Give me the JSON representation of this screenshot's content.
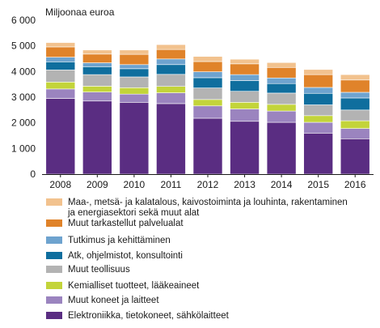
{
  "chart_data": {
    "type": "bar",
    "stacked": true,
    "unit_label": "Miljoonaa euroa",
    "categories": [
      "2008",
      "2009",
      "2010",
      "2011",
      "2012",
      "2013",
      "2014",
      "2015",
      "2016"
    ],
    "yticks": [
      "0",
      "1 000",
      "2 000",
      "3 000",
      "4 000",
      "5 000",
      "6 000"
    ],
    "ylim": [
      0,
      6000
    ],
    "grid": false,
    "legend_position": "bottom",
    "series": [
      {
        "name": "Elektroniikka, tietokoneet, sähkölaitteet",
        "color": "#5a2d82",
        "values": [
          2950,
          2850,
          2800,
          2750,
          2180,
          2060,
          2020,
          1600,
          1380
        ]
      },
      {
        "name": "Muut koneet ja laitteet",
        "color": "#9b84bf",
        "values": [
          370,
          350,
          320,
          420,
          480,
          480,
          440,
          420,
          400
        ]
      },
      {
        "name": "Kemialliset tuotteet, lääkeaineet",
        "color": "#c3d43a",
        "values": [
          270,
          230,
          250,
          250,
          250,
          260,
          260,
          260,
          300
        ]
      },
      {
        "name": "Muut teollisuus",
        "color": "#b3b3b3",
        "values": [
          470,
          450,
          420,
          470,
          450,
          430,
          440,
          420,
          420
        ]
      },
      {
        "name": "Atk, ohjelmistot, konsultointi",
        "color": "#0f6e9e",
        "values": [
          320,
          310,
          320,
          380,
          400,
          420,
          370,
          450,
          470
        ]
      },
      {
        "name": "Tutkimus ja kehittäminen",
        "color": "#6ea3cf",
        "values": [
          180,
          150,
          160,
          220,
          230,
          230,
          220,
          230,
          220
        ]
      },
      {
        "name": "Muut tarkastellut palvelualat",
        "color": "#e0832a",
        "values": [
          400,
          340,
          400,
          370,
          400,
          420,
          410,
          500,
          480
        ]
      },
      {
        "name": "Maa-, metsä- ja kalatalous, kaivostoiminta ja louhinta, rakentaminen ja energiasektori sekä muut alat",
        "legend_lines": [
          "Maa-, metsä- ja kalatalous, kaivostoiminta ja louhinta, rakentaminen",
          "ja energiasektori sekä muut alat"
        ],
        "color": "#f2c28e",
        "values": [
          170,
          160,
          170,
          190,
          200,
          180,
          190,
          200,
          210
        ]
      }
    ]
  }
}
